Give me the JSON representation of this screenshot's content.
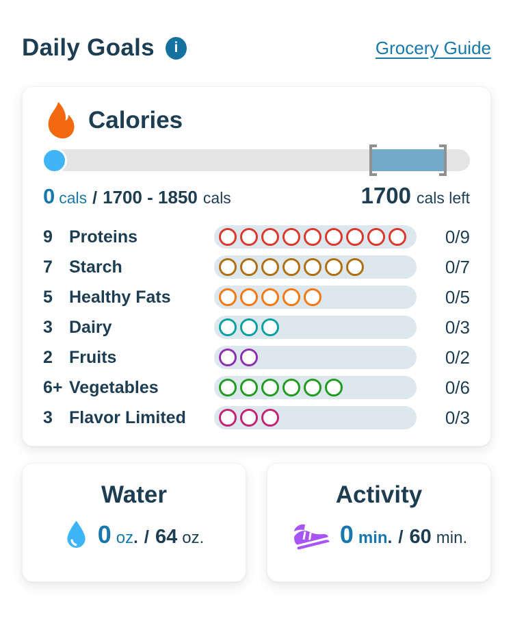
{
  "header": {
    "title": "Daily Goals",
    "info_icon_glyph": "i",
    "grocery_link": "Grocery Guide"
  },
  "calories": {
    "title": "Calories",
    "consumed": "0",
    "consumed_unit": "cals",
    "separator": "/",
    "target_range": "1700 - 1850",
    "target_unit": "cals",
    "remaining": "1700",
    "remaining_label": "cals left"
  },
  "food_groups": [
    {
      "target": "9",
      "name": "Proteins",
      "total": 9,
      "filled": 0,
      "progress": "0/9",
      "color": "#da392b"
    },
    {
      "target": "7",
      "name": "Starch",
      "total": 7,
      "filled": 0,
      "progress": "0/7",
      "color": "#b06f10"
    },
    {
      "target": "5",
      "name": "Healthy Fats",
      "total": 5,
      "filled": 0,
      "progress": "0/5",
      "color": "#f5790f"
    },
    {
      "target": "3",
      "name": "Dairy",
      "total": 3,
      "filled": 0,
      "progress": "0/3",
      "color": "#0ba0a0"
    },
    {
      "target": "2",
      "name": "Fruits",
      "total": 2,
      "filled": 0,
      "progress": "0/2",
      "color": "#8e2fb3"
    },
    {
      "target": "6+",
      "name": "Vegetables",
      "total": 6,
      "filled": 0,
      "progress": "0/6",
      "color": "#219c21"
    },
    {
      "target": "3",
      "name": "Flavor Limited",
      "total": 3,
      "filled": 0,
      "progress": "0/3",
      "color": "#c32476"
    }
  ],
  "water": {
    "title": "Water",
    "current": "0",
    "current_unit": "oz",
    "current_period": ".",
    "separator": "/",
    "goal": "64",
    "goal_unit": "oz."
  },
  "activity": {
    "title": "Activity",
    "current": "0",
    "current_unit": "min",
    "current_period": ".",
    "separator": "/",
    "goal": "60",
    "goal_unit": "min."
  },
  "colors": {
    "text_dark": "#1d3d53",
    "accent_blue": "#1878ab",
    "info_icon_bg": "#15729e",
    "flame_orange": "#f4690f",
    "slider_handle_blue": "#41b4f6",
    "slider_track_gray": "#e4e4e4",
    "slider_target_zone": "#73a9c9",
    "bracket_gray": "#909090",
    "pill_background": "#dce7ee",
    "water_blue": "#3db5f7",
    "activity_purple": "#a855f7"
  }
}
